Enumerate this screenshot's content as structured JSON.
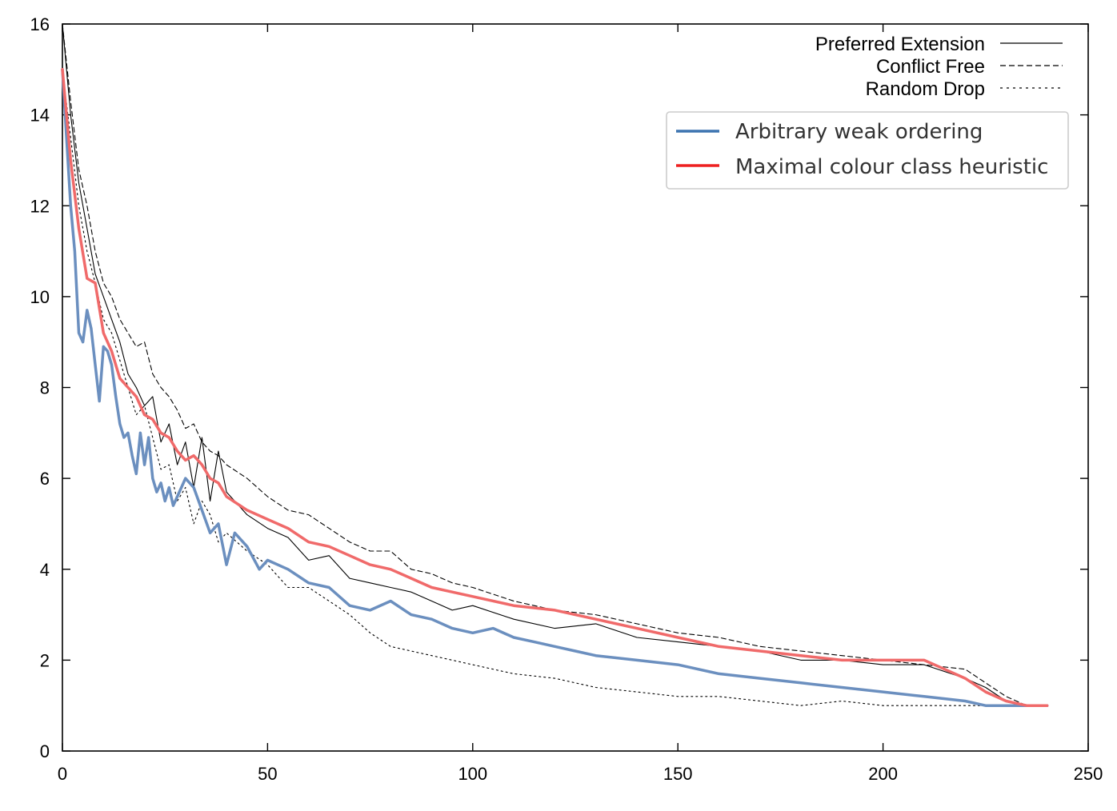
{
  "chart_data": {
    "type": "line",
    "title": "",
    "xlabel": "",
    "ylabel": "",
    "xlim": [
      0,
      250
    ],
    "ylim": [
      0,
      16
    ],
    "x_ticks": [
      "0",
      "50",
      "100",
      "150",
      "200",
      "250"
    ],
    "y_ticks": [
      "0",
      "2",
      "4",
      "6",
      "8",
      "10",
      "12",
      "14",
      "16"
    ],
    "grid": false,
    "legend_top": {
      "placement": "top-right",
      "entries": [
        "Preferred Extension",
        "Conflict Free",
        "Random Drop"
      ]
    },
    "legend_box": {
      "placement": "top-right",
      "entries": [
        "Arbitrary weak ordering",
        "Maximal colour class heuristic"
      ]
    },
    "series": [
      {
        "name": "Preferred Extension",
        "style": "solid",
        "color": "#000000",
        "x": [
          0,
          2,
          4,
          6,
          8,
          10,
          12,
          14,
          16,
          18,
          20,
          22,
          24,
          26,
          28,
          30,
          32,
          34,
          36,
          38,
          40,
          45,
          50,
          55,
          60,
          65,
          70,
          75,
          80,
          85,
          90,
          95,
          100,
          110,
          120,
          130,
          140,
          150,
          160,
          170,
          180,
          190,
          200,
          210,
          220,
          225,
          230,
          235,
          240
        ],
        "y": [
          16,
          14,
          12.5,
          11.5,
          10.5,
          10,
          9.5,
          9,
          8.3,
          8,
          7.6,
          7.8,
          6.8,
          7.2,
          6.3,
          6.8,
          5.8,
          6.9,
          5.5,
          6.6,
          5.7,
          5.2,
          4.9,
          4.7,
          4.2,
          4.3,
          3.8,
          3.7,
          3.6,
          3.5,
          3.3,
          3.1,
          3.2,
          2.9,
          2.7,
          2.8,
          2.5,
          2.4,
          2.3,
          2.2,
          2.0,
          2.0,
          1.9,
          1.9,
          1.6,
          1.4,
          1.1,
          1.0,
          1.0
        ]
      },
      {
        "name": "Conflict Free",
        "style": "dashed",
        "color": "#000000",
        "x": [
          0,
          2,
          4,
          6,
          8,
          10,
          12,
          14,
          16,
          18,
          20,
          22,
          24,
          26,
          28,
          30,
          32,
          34,
          36,
          38,
          40,
          45,
          50,
          55,
          60,
          65,
          70,
          75,
          80,
          85,
          90,
          95,
          100,
          110,
          120,
          130,
          140,
          150,
          160,
          170,
          180,
          190,
          200,
          210,
          220,
          225,
          230,
          235,
          240
        ],
        "y": [
          16,
          14.3,
          12.8,
          12,
          11,
          10.3,
          10,
          9.5,
          9.2,
          8.9,
          9.0,
          8.3,
          8.0,
          7.8,
          7.5,
          7.1,
          7.2,
          6.8,
          6.6,
          6.5,
          6.3,
          6.0,
          5.6,
          5.3,
          5.2,
          4.9,
          4.6,
          4.4,
          4.4,
          4.0,
          3.9,
          3.7,
          3.6,
          3.3,
          3.1,
          3.0,
          2.8,
          2.6,
          2.5,
          2.3,
          2.2,
          2.1,
          2.0,
          1.9,
          1.8,
          1.5,
          1.2,
          1.0,
          1.0
        ]
      },
      {
        "name": "Random Drop",
        "style": "dotted",
        "color": "#000000",
        "x": [
          0,
          2,
          4,
          6,
          8,
          10,
          12,
          14,
          16,
          18,
          20,
          22,
          24,
          26,
          28,
          30,
          32,
          34,
          36,
          38,
          40,
          45,
          50,
          55,
          60,
          65,
          70,
          75,
          80,
          85,
          90,
          95,
          100,
          110,
          120,
          130,
          140,
          150,
          160,
          170,
          180,
          190,
          200,
          210,
          220,
          225,
          230,
          235,
          240
        ],
        "y": [
          15,
          13.5,
          12,
          11,
          10.3,
          9.5,
          9.2,
          8.6,
          8.0,
          7.4,
          7.6,
          6.9,
          6.2,
          6.3,
          5.5,
          5.8,
          5.0,
          5.5,
          5.2,
          4.6,
          4.8,
          4.4,
          4.1,
          3.6,
          3.6,
          3.3,
          3.0,
          2.6,
          2.3,
          2.2,
          2.1,
          2.0,
          1.9,
          1.7,
          1.6,
          1.4,
          1.3,
          1.2,
          1.2,
          1.1,
          1.0,
          1.1,
          1.0,
          1.0,
          1.0,
          1.0,
          1.0,
          1.0,
          1.0
        ]
      },
      {
        "name": "Arbitrary weak ordering",
        "style": "thick",
        "color": "#6b8fbf",
        "x": [
          0,
          2,
          3,
          4,
          5,
          6,
          7,
          8,
          9,
          10,
          11,
          12,
          13,
          14,
          15,
          16,
          17,
          18,
          19,
          20,
          21,
          22,
          23,
          24,
          25,
          26,
          27,
          28,
          30,
          32,
          34,
          36,
          38,
          40,
          42,
          45,
          48,
          50,
          55,
          60,
          65,
          70,
          75,
          80,
          85,
          90,
          95,
          100,
          105,
          110,
          115,
          120,
          125,
          130,
          140,
          150,
          160,
          170,
          180,
          190,
          200,
          210,
          220,
          225,
          230,
          235,
          240
        ],
        "y": [
          15,
          12,
          11,
          9.2,
          9.0,
          9.7,
          9.3,
          8.5,
          7.7,
          8.9,
          8.8,
          8.5,
          7.8,
          7.2,
          6.9,
          7.0,
          6.5,
          6.1,
          7.0,
          6.3,
          6.9,
          6.0,
          5.7,
          5.9,
          5.5,
          5.8,
          5.4,
          5.6,
          6.0,
          5.8,
          5.3,
          4.8,
          5.0,
          4.1,
          4.8,
          4.5,
          4.0,
          4.2,
          4.0,
          3.7,
          3.6,
          3.2,
          3.1,
          3.3,
          3.0,
          2.9,
          2.7,
          2.6,
          2.7,
          2.5,
          2.4,
          2.3,
          2.2,
          2.1,
          2.0,
          1.9,
          1.7,
          1.6,
          1.5,
          1.4,
          1.3,
          1.2,
          1.1,
          1.0,
          1.0,
          1.0,
          1.0
        ]
      },
      {
        "name": "Maximal colour class heuristic",
        "style": "thick",
        "color": "#f06a6a",
        "x": [
          0,
          2,
          4,
          6,
          8,
          10,
          12,
          14,
          16,
          18,
          20,
          22,
          24,
          26,
          28,
          30,
          32,
          34,
          36,
          38,
          40,
          45,
          50,
          55,
          60,
          65,
          70,
          75,
          80,
          85,
          90,
          95,
          100,
          110,
          120,
          130,
          140,
          150,
          160,
          170,
          180,
          190,
          200,
          205,
          210,
          215,
          220,
          225,
          230,
          235,
          240
        ],
        "y": [
          15,
          13,
          11.5,
          10.4,
          10.3,
          9.2,
          8.8,
          8.2,
          8.0,
          7.8,
          7.4,
          7.3,
          7.0,
          6.9,
          6.6,
          6.4,
          6.5,
          6.3,
          6.0,
          5.9,
          5.6,
          5.3,
          5.1,
          4.9,
          4.6,
          4.5,
          4.3,
          4.1,
          4.0,
          3.8,
          3.6,
          3.5,
          3.4,
          3.2,
          3.1,
          2.9,
          2.7,
          2.5,
          2.3,
          2.2,
          2.1,
          2.0,
          2.0,
          2.0,
          2.0,
          1.8,
          1.6,
          1.3,
          1.1,
          1.0,
          1.0
        ]
      }
    ]
  }
}
